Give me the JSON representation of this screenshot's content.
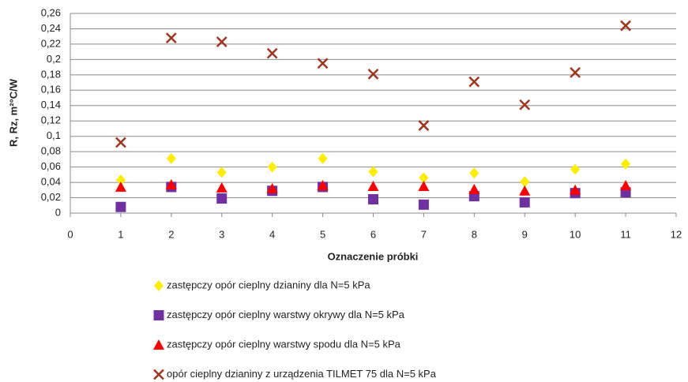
{
  "chart_data": {
    "type": "scatter",
    "x_label": "Oznaczenie próbki",
    "y_label": "R, Rz, m²°C/W",
    "x": [
      1,
      2,
      3,
      4,
      5,
      6,
      7,
      8,
      9,
      10,
      11
    ],
    "xlim": [
      0,
      12
    ],
    "xticks": [
      0,
      1,
      2,
      3,
      4,
      5,
      6,
      7,
      8,
      9,
      10,
      11,
      12
    ],
    "ylim": [
      0,
      0.26
    ],
    "yticks": [
      {
        "value": 0,
        "label": "0"
      },
      {
        "value": 0.02,
        "label": "0,02"
      },
      {
        "value": 0.04,
        "label": "0,04"
      },
      {
        "value": 0.06,
        "label": "0,06"
      },
      {
        "value": 0.08,
        "label": "0,08"
      },
      {
        "value": 0.1,
        "label": "0,1"
      },
      {
        "value": 0.12,
        "label": "0,12"
      },
      {
        "value": 0.14,
        "label": "0,14"
      },
      {
        "value": 0.16,
        "label": "0,16"
      },
      {
        "value": 0.18,
        "label": "0,18"
      },
      {
        "value": 0.2,
        "label": "0,2"
      },
      {
        "value": 0.22,
        "label": "0,22"
      },
      {
        "value": 0.24,
        "label": "0,24"
      },
      {
        "value": 0.26,
        "label": "0,26"
      }
    ],
    "grid": true,
    "legend": "bottom",
    "series": [
      {
        "name": "zastępczy opór cieplny dzianiny dla N=5 kPa",
        "color": "#ffee00",
        "marker": "diamond",
        "values": [
          0.043,
          0.071,
          0.053,
          0.06,
          0.071,
          0.054,
          0.046,
          0.052,
          0.041,
          0.057,
          0.064
        ]
      },
      {
        "name": "zastępczy opór cieplny warstwy okrywy dla N=5 kPa",
        "color": "#7030a0",
        "marker": "square",
        "values": [
          0.008,
          0.034,
          0.019,
          0.029,
          0.034,
          0.018,
          0.011,
          0.022,
          0.014,
          0.026,
          0.027
        ]
      },
      {
        "name": "zastępczy opór cieplny warstwy spodu dla N=5 kPa",
        "color": "#ff0000",
        "marker": "triangle",
        "values": [
          0.034,
          0.037,
          0.033,
          0.032,
          0.036,
          0.035,
          0.035,
          0.031,
          0.029,
          0.03,
          0.036
        ]
      },
      {
        "name": "opór cieplny dzianiny z urządzenia TILMET 75 dla N=5 kPa",
        "color": "#a0351b",
        "marker": "cross",
        "values": [
          0.092,
          0.228,
          0.223,
          0.208,
          0.195,
          0.181,
          0.114,
          0.171,
          0.141,
          0.183,
          0.244
        ]
      }
    ]
  }
}
